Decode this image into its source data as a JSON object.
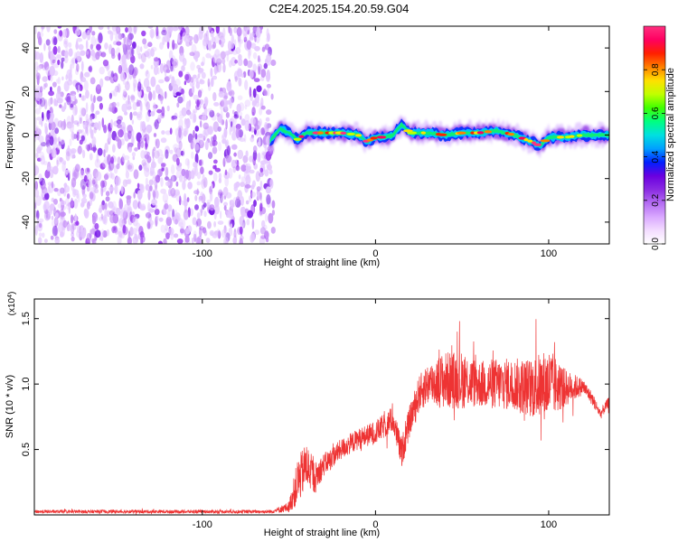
{
  "title": "C2E4.2025.154.20.59.G04",
  "colors": {
    "snr_line": "#ee3333",
    "scatter_fill": "#8a2be2",
    "colormap": [
      "#ffffff",
      "#f3dcff",
      "#d9a8ff",
      "#b46cf2",
      "#8a2be2",
      "#6a00e0",
      "#0020ff",
      "#00a0ff",
      "#00e0e0",
      "#00ff80",
      "#40ff00",
      "#c0ff00",
      "#ffe000",
      "#ff8000",
      "#ff2000",
      "#ff0060",
      "#ff3080"
    ]
  },
  "chart_data": [
    {
      "type": "heatmap",
      "xlabel": "Height of straight line (km)",
      "ylabel": "Frequency (Hz)",
      "xlim": [
        -197,
        135
      ],
      "ylim": [
        -50,
        50
      ],
      "x_ticks": [
        -100,
        0,
        100
      ],
      "y_ticks": [
        -40,
        -20,
        0,
        20,
        40
      ],
      "colorbar": {
        "label": "Normalized spectral amplitude",
        "range": [
          0.0,
          1.0
        ],
        "ticks": [
          "0.0",
          "0.2",
          "0.4",
          "0.6",
          "0.8"
        ],
        "tick_values": [
          0.0,
          0.2,
          0.4,
          0.6,
          0.8
        ]
      },
      "noise_region_x": [
        -197,
        -61
      ],
      "ridge": {
        "x": [
          -61,
          -55,
          -50,
          -45,
          -40,
          -30,
          -20,
          -10,
          -5,
          0,
          5,
          10,
          15,
          20,
          30,
          40,
          50,
          60,
          70,
          80,
          90,
          95,
          100,
          110,
          120,
          135
        ],
        "frequency": [
          -3,
          3,
          1,
          -2,
          1,
          1,
          1,
          0,
          -3,
          -1,
          -1,
          0,
          5,
          1,
          1,
          0,
          1,
          1,
          2,
          0,
          -3,
          -5,
          -1,
          -1,
          0,
          0
        ]
      },
      "grid": false
    },
    {
      "type": "line",
      "xlabel": "Height of straight line (km)",
      "ylabel": "SNR (10 * v/v)",
      "y_multiplier": "(x10^4)",
      "y_multiplier_base": "(x10",
      "y_multiplier_exp": "4",
      "xlim": [
        -197,
        135
      ],
      "ylim": [
        0,
        16500
      ],
      "x_ticks": [
        -100,
        0,
        100
      ],
      "y_ticks": [
        5000,
        10000,
        15000
      ],
      "y_tick_labels": [
        "0.5",
        "1.0",
        "1.5"
      ],
      "envelope": {
        "x": [
          -197,
          -60,
          -50,
          -45,
          -40,
          -35,
          -30,
          -25,
          -20,
          -10,
          0,
          10,
          15,
          20,
          25,
          30,
          40,
          50,
          60,
          70,
          80,
          90,
          100,
          110,
          120,
          125,
          130,
          135
        ],
        "center": [
          250,
          250,
          600,
          2500,
          3800,
          2800,
          3800,
          4400,
          5000,
          5800,
          6300,
          7300,
          4700,
          7300,
          9200,
          10000,
          10300,
          10300,
          10000,
          10000,
          10000,
          9700,
          10000,
          9700,
          9800,
          8900,
          7700,
          8700
        ],
        "spread": [
          130,
          130,
          400,
          1800,
          1800,
          1200,
          900,
          800,
          800,
          800,
          900,
          1000,
          1200,
          1200,
          1400,
          1600,
          2200,
          2200,
          1800,
          2000,
          2000,
          2300,
          2800,
          1400,
          600,
          500,
          400,
          400
        ]
      },
      "grid": false
    }
  ]
}
